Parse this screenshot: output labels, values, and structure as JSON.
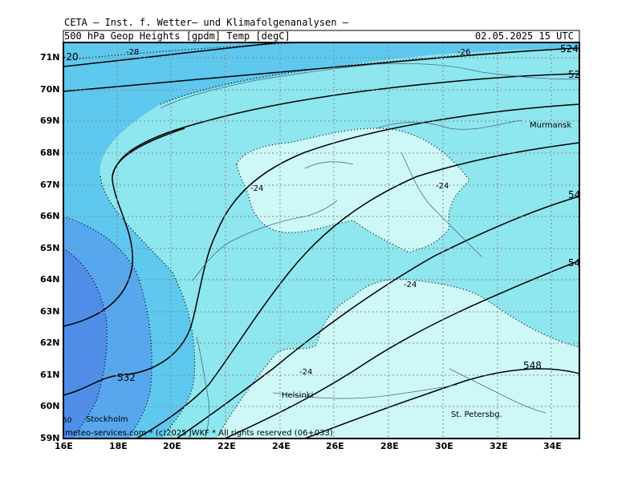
{
  "header": {
    "institution": "CETA — Inst. f. Wetter— und Klimafolgenanalysen —",
    "field": "500 hPa Geop Heights [gpdm] Temp [degC]",
    "valid_time": "02.05.2025 15 UTC"
  },
  "map": {
    "lat_labels": [
      "71N",
      "70N",
      "69N",
      "68N",
      "67N",
      "66N",
      "65N",
      "64N",
      "63N",
      "62N",
      "61N",
      "60N",
      "59N"
    ],
    "lon_labels": [
      "16E",
      "18E",
      "20E",
      "22E",
      "24E",
      "26E",
      "28E",
      "30E",
      "32E",
      "34E"
    ],
    "extent": {
      "lon": [
        16,
        35
      ],
      "lat": [
        59,
        71.5
      ]
    },
    "height_contour_labels": [
      "524",
      "52",
      "54",
      "54",
      "548",
      "532",
      "50"
    ],
    "temp_contour_labels": [
      "-28",
      "-26",
      "-24",
      "-24",
      "-24",
      "-24",
      "-20"
    ],
    "cities": [
      "Murmansk",
      "Helsinki",
      "Stockholm",
      "St. Petersbg."
    ],
    "credit": "meteo-services.com * (c)2025 JWKF * All rights reserved (06+033)",
    "colors": {
      "t_warm": "#4f8de8",
      "t_mid1": "#57a7ee",
      "t_mid2": "#5ec8ee",
      "t_cool": "#8ee6ee",
      "t_cold": "#cef8f8",
      "frame": "#000000"
    }
  }
}
